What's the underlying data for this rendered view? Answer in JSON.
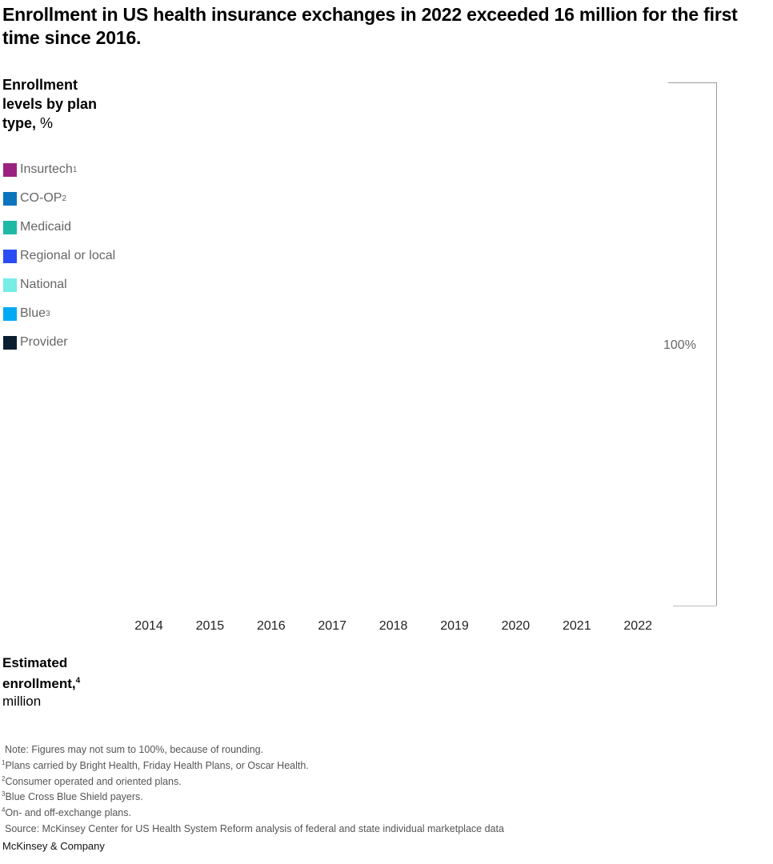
{
  "title": "Enrollment in US health insurance exchanges in 2022 exceeded 16 million for the first time since 2016.",
  "panel1": {
    "heading": "Enrollment levels by plan type,",
    "unit": "%"
  },
  "panel2": {
    "heading": "Estimated enrollment,",
    "footnote_ref": "4",
    "unit": "million"
  },
  "chart_data": {
    "type": "bar",
    "stacked": true,
    "categories": [
      "2014",
      "2015",
      "2016",
      "2017",
      "2018",
      "2019",
      "2020",
      "2021",
      "2022"
    ],
    "series": [
      {
        "name": "Insurtech",
        "footnote": "1",
        "color": "#9b2180"
      },
      {
        "name": "CO-OP",
        "footnote": "2",
        "color": "#0a74bd"
      },
      {
        "name": "Medicaid",
        "footnote": "",
        "color": "#1eb9a5"
      },
      {
        "name": "Regional or local",
        "footnote": "",
        "color": "#2a4cf5"
      },
      {
        "name": "National",
        "footnote": "",
        "color": "#76ede5"
      },
      {
        "name": "Blue",
        "footnote": "3",
        "color": "#00a9f4"
      },
      {
        "name": "Provider",
        "footnote": "",
        "color": "#0b1e31"
      }
    ],
    "total_label": "100%",
    "legend_position": "left"
  },
  "notes": [
    {
      "sup": "",
      "text": "Note: Figures may not sum to 100%, because of rounding."
    },
    {
      "sup": "1",
      "text": "Plans carried by Bright Health, Friday Health Plans, or Oscar Health."
    },
    {
      "sup": "2",
      "text": "Consumer operated and oriented plans."
    },
    {
      "sup": "3",
      "text": "Blue Cross Blue Shield payers."
    },
    {
      "sup": "4",
      "text": "On- and off-exchange plans."
    },
    {
      "sup": "",
      "text": "Source: McKinsey Center for US Health System Reform analysis of federal and state individual marketplace data"
    }
  ],
  "brand": "McKinsey & Company"
}
